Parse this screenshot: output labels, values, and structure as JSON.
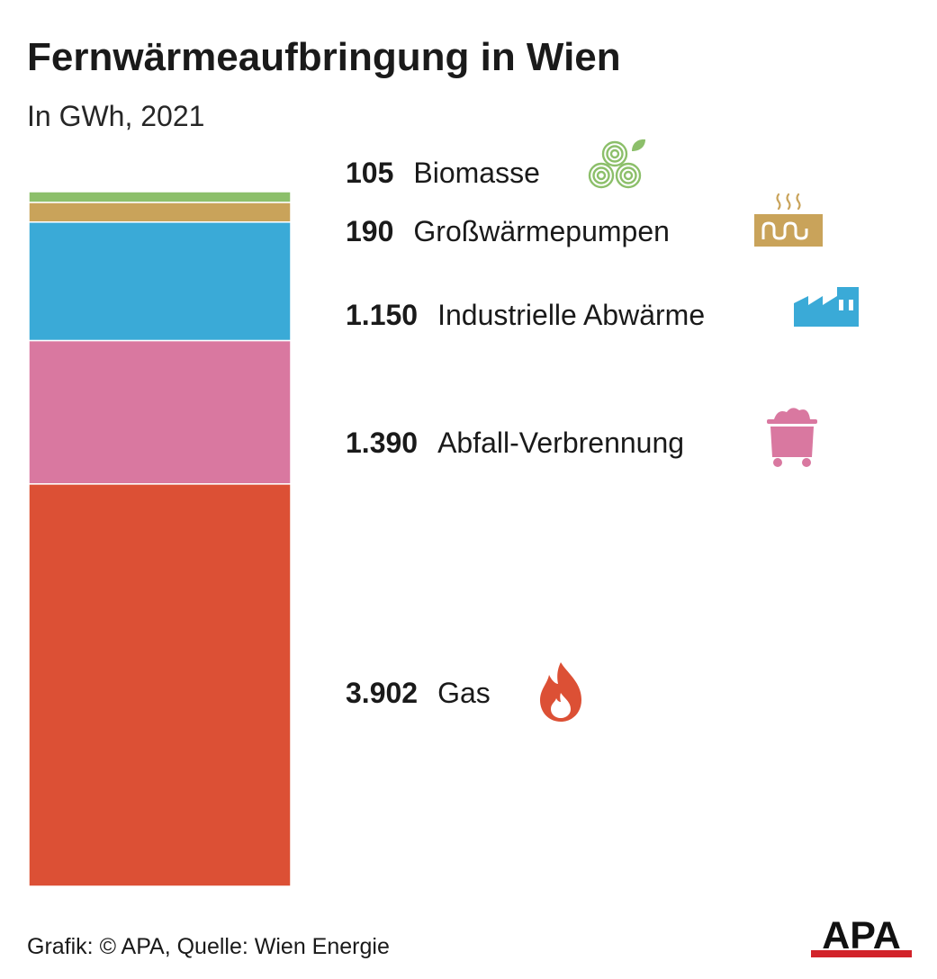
{
  "title": "Fernwärmeaufbringung in Wien",
  "subtitle": "In GWh, 2021",
  "footer": "Grafik: © APA, Quelle: Wien Energie",
  "logo_text": "APA",
  "chart_data": {
    "type": "bar",
    "stacked": true,
    "series": [
      {
        "name": "Biomasse",
        "value": 105,
        "value_label": "105",
        "color": "#8cbf6a",
        "icon": "wood-logs-icon"
      },
      {
        "name": "Großwärmepumpen",
        "value": 190,
        "value_label": "190",
        "color": "#c9a35a",
        "icon": "heat-pump-icon"
      },
      {
        "name": "Industrielle Abwärme",
        "value": 1150,
        "value_label": "1.150",
        "color": "#3aaad7",
        "icon": "factory-icon"
      },
      {
        "name": "Abfall-Verbrennung",
        "value": 1390,
        "value_label": "1.390",
        "color": "#d978a0",
        "icon": "waste-container-icon"
      },
      {
        "name": "Gas",
        "value": 3902,
        "value_label": "3.902",
        "color": "#dc5035",
        "icon": "flame-icon"
      }
    ]
  }
}
